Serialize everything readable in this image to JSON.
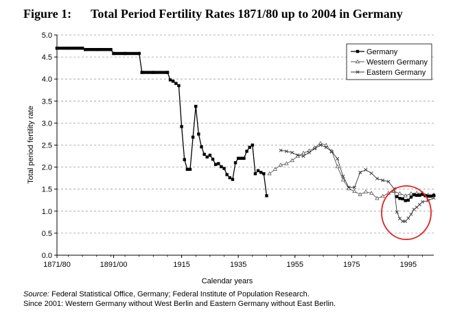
{
  "figure": {
    "number": "Figure 1:",
    "title": "Total Period Fertility Rates 1871/80 up to 2004 in Germany"
  },
  "source": {
    "label": "Source:",
    "text": " Federal Statistical Office, Germany; Federal Institute of Population Research.",
    "note": "Since 2001: Western Germany without West Berlin and Eastern Germany without East Berlin."
  },
  "colors": {
    "germany": "#000000",
    "western": "#555555",
    "eastern": "#333333",
    "highlight": "#e0201e",
    "grid": "#9a9a9a"
  },
  "chart_data": {
    "type": "line",
    "xlabel": "Calendar years",
    "ylabel": "Total period fertility rate",
    "ylim": [
      0,
      5
    ],
    "ytick_labels": [
      "0.0",
      "0.5",
      "1.0",
      "1.5",
      "2.0",
      "2.5",
      "3.0",
      "3.5",
      "4.0",
      "4.5",
      "5.0"
    ],
    "xtick_labels": [
      "1871/80",
      "1891/00",
      "1915",
      "1935",
      "1955",
      "1975",
      "1995"
    ],
    "grid": "horizontal dashed",
    "legend_position": "top-right",
    "annotation": "red circle around 1990-2000",
    "series": [
      {
        "name": "Germany",
        "marker": "square",
        "x": [
          1871,
          1875,
          1880,
          1881,
          1885,
          1890,
          1891,
          1895,
          1900,
          1901,
          1905,
          1910,
          1911,
          1912,
          1913,
          1914,
          1915,
          1916,
          1917,
          1918,
          1919,
          1920,
          1921,
          1922,
          1923,
          1924,
          1925,
          1926,
          1927,
          1928,
          1929,
          1930,
          1931,
          1932,
          1933,
          1934,
          1935,
          1936,
          1937,
          1938,
          1939,
          1940,
          1941,
          1942,
          1943,
          1944,
          1945,
          1991,
          1992,
          1993,
          1994,
          1995,
          1996,
          1997,
          1998,
          1999,
          2000,
          2001,
          2002,
          2003,
          2004
        ],
        "y": [
          4.7,
          4.7,
          4.7,
          4.67,
          4.67,
          4.67,
          4.58,
          4.58,
          4.58,
          4.15,
          4.15,
          4.15,
          3.98,
          3.95,
          3.9,
          3.85,
          2.92,
          2.17,
          1.95,
          1.95,
          2.68,
          3.38,
          2.75,
          2.46,
          2.29,
          2.23,
          2.27,
          2.18,
          2.06,
          2.08,
          2.01,
          1.97,
          1.83,
          1.76,
          1.72,
          2.1,
          2.2,
          2.2,
          2.2,
          2.36,
          2.45,
          2.5,
          1.85,
          1.92,
          1.88,
          1.85,
          1.35,
          1.33,
          1.29,
          1.28,
          1.24,
          1.25,
          1.32,
          1.37,
          1.36,
          1.36,
          1.38,
          1.35,
          1.34,
          1.34,
          1.36
        ]
      },
      {
        "name": "Western Germany",
        "marker": "triangle",
        "x": [
          1946,
          1948,
          1950,
          1952,
          1954,
          1956,
          1958,
          1960,
          1962,
          1964,
          1966,
          1968,
          1970,
          1972,
          1974,
          1976,
          1978,
          1980,
          1982,
          1984,
          1986,
          1988,
          1990,
          1992,
          1994,
          1996,
          1998,
          2000,
          2002,
          2004
        ],
        "y": [
          1.85,
          1.95,
          2.05,
          2.08,
          2.15,
          2.25,
          2.32,
          2.37,
          2.44,
          2.54,
          2.5,
          2.36,
          2.01,
          1.71,
          1.51,
          1.45,
          1.38,
          1.44,
          1.41,
          1.29,
          1.34,
          1.41,
          1.45,
          1.4,
          1.35,
          1.4,
          1.41,
          1.41,
          1.37,
          1.37
        ]
      },
      {
        "name": "Eastern Germany",
        "marker": "x",
        "x": [
          1950,
          1952,
          1954,
          1956,
          1958,
          1960,
          1962,
          1964,
          1966,
          1968,
          1970,
          1972,
          1974,
          1976,
          1978,
          1980,
          1982,
          1984,
          1986,
          1988,
          1990,
          1991,
          1992,
          1993,
          1994,
          1995,
          1996,
          1997,
          1998,
          1999,
          2000,
          2002,
          2004
        ],
        "y": [
          2.38,
          2.36,
          2.33,
          2.27,
          2.25,
          2.33,
          2.42,
          2.5,
          2.45,
          2.35,
          2.19,
          1.79,
          1.54,
          1.54,
          1.88,
          1.94,
          1.86,
          1.74,
          1.7,
          1.67,
          1.51,
          0.98,
          0.83,
          0.77,
          0.77,
          0.84,
          0.93,
          1.04,
          1.09,
          1.15,
          1.21,
          1.24,
          1.3
        ]
      }
    ]
  }
}
